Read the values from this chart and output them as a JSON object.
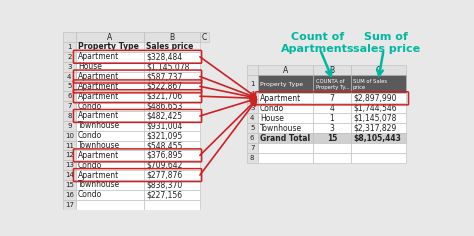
{
  "left_table": {
    "col1_header": "Property Type",
    "col2_header": "Sales price",
    "rows": [
      [
        "Apartment",
        "$328,484",
        true
      ],
      [
        "House",
        "$1,145,078",
        false
      ],
      [
        "Apartment",
        "$587,737",
        true
      ],
      [
        "Apartment",
        "$522,867",
        true
      ],
      [
        "Apartment",
        "$321,706",
        true
      ],
      [
        "Condo",
        "$486,653",
        false
      ],
      [
        "Apartment",
        "$482,425",
        true
      ],
      [
        "Townhouse",
        "$931,004",
        false
      ],
      [
        "Condo",
        "$321,095",
        false
      ],
      [
        "Townhouse",
        "$548,455",
        false
      ],
      [
        "Apartment",
        "$376,895",
        true
      ],
      [
        "Condo",
        "$709,642",
        false
      ],
      [
        "Apartment",
        "$277,876",
        true
      ],
      [
        "Townhouse",
        "$838,370",
        false
      ],
      [
        "Condo",
        "$227,156",
        false
      ],
      [
        "",
        "",
        false
      ]
    ]
  },
  "right_table": {
    "header_row": [
      "Property Type",
      "COUNTA of\nProperty Ty...",
      "SUM of Sales\nprice"
    ],
    "header_bg": "#5a5a5a",
    "header_fg": "#ffffff",
    "rows": [
      [
        "Apartment",
        "7",
        "$2,897,990",
        true
      ],
      [
        "Condo",
        "4",
        "$1,744,546",
        false
      ],
      [
        "House",
        "1",
        "$1,145,078",
        false
      ],
      [
        "Townhouse",
        "3",
        "$2,317,829",
        false
      ],
      [
        "Grand Total",
        "15",
        "$8,105,443",
        false
      ]
    ]
  },
  "annotations": {
    "count_label": "Count of\nApartments",
    "sum_label": "Sum of\nsales price",
    "label_color": "#00b8a0",
    "arrow_color": "#00b8a0"
  },
  "red_arrow_color": "#cc2222",
  "bg_color": "#e8e8e8"
}
